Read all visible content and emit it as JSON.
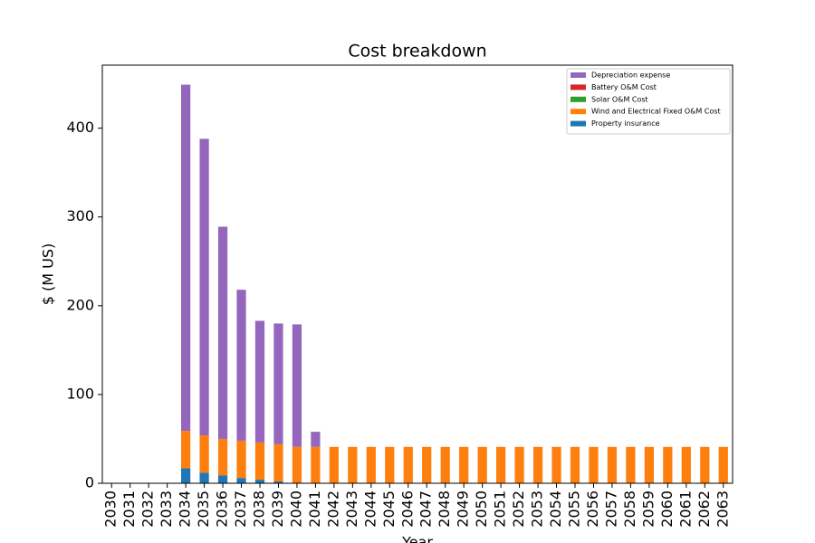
{
  "chart_data": {
    "type": "stacked_bar",
    "title": "Cost breakdown",
    "xlabel": "Year",
    "ylabel": "$ (M US)",
    "categories": [
      "2030",
      "2031",
      "2032",
      "2033",
      "2034",
      "2035",
      "2036",
      "2037",
      "2038",
      "2039",
      "2040",
      "2041",
      "2042",
      "2043",
      "2044",
      "2045",
      "2046",
      "2047",
      "2048",
      "2049",
      "2050",
      "2051",
      "2052",
      "2053",
      "2054",
      "2055",
      "2056",
      "2057",
      "2058",
      "2059",
      "2060",
      "2061",
      "2062",
      "2063"
    ],
    "series": [
      {
        "name": "Property insurance",
        "color": "#1f77b4",
        "values": [
          0,
          0,
          0,
          0,
          17,
          12,
          9,
          6,
          4,
          2,
          0,
          0,
          0,
          0,
          0,
          0,
          0,
          0,
          0,
          0,
          0,
          0,
          0,
          0,
          0,
          0,
          0,
          0,
          0,
          0,
          0,
          0,
          0,
          0
        ]
      },
      {
        "name": "Wind and Electrical Fixed O&M Cost",
        "color": "#ff7f0e",
        "values": [
          0,
          0,
          0,
          0,
          42,
          42,
          41,
          42,
          42,
          42,
          41,
          41,
          41,
          41,
          41,
          41,
          41,
          41,
          41,
          41,
          41,
          41,
          41,
          41,
          41,
          41,
          41,
          41,
          41,
          41,
          41,
          41,
          41,
          41
        ]
      },
      {
        "name": "Solar O&M Cost",
        "color": "#2ca02c",
        "values": [
          0,
          0,
          0,
          0,
          0,
          0,
          0,
          0,
          0,
          0,
          0,
          0,
          0,
          0,
          0,
          0,
          0,
          0,
          0,
          0,
          0,
          0,
          0,
          0,
          0,
          0,
          0,
          0,
          0,
          0,
          0,
          0,
          0,
          0
        ]
      },
      {
        "name": "Battery O&M Cost",
        "color": "#d62728",
        "values": [
          0,
          0,
          0,
          0,
          0,
          0,
          0,
          0,
          0,
          0,
          0,
          0,
          0,
          0,
          0,
          0,
          0,
          0,
          0,
          0,
          0,
          0,
          0,
          0,
          0,
          0,
          0,
          0,
          0,
          0,
          0,
          0,
          0,
          0
        ]
      },
      {
        "name": "Depreciation expense",
        "color": "#9467bd",
        "values": [
          0,
          0,
          0,
          0,
          390,
          334,
          239,
          170,
          137,
          136,
          138,
          17,
          0,
          0,
          0,
          0,
          0,
          0,
          0,
          0,
          0,
          0,
          0,
          0,
          0,
          0,
          0,
          0,
          0,
          0,
          0,
          0,
          0,
          0
        ]
      }
    ],
    "ylim": [
      0,
      471
    ],
    "yticks": [
      0,
      100,
      200,
      300,
      400
    ],
    "legend": "upper right"
  }
}
